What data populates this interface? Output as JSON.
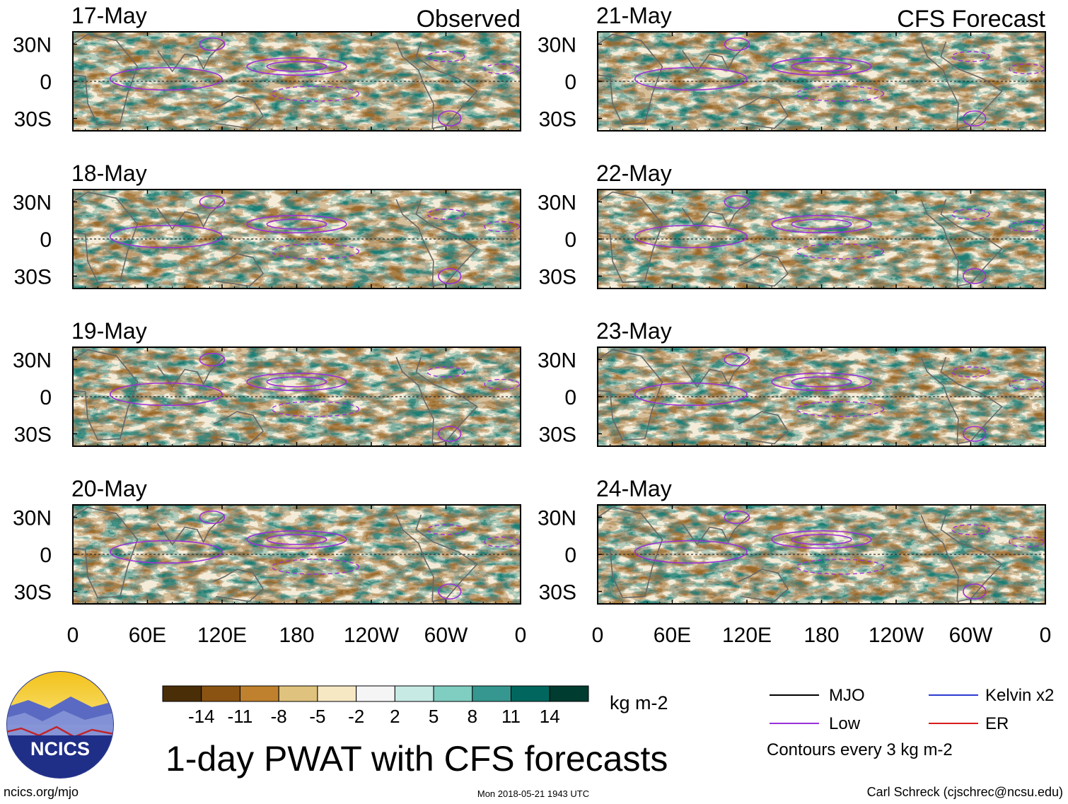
{
  "chart_data": {
    "type": "heatmap",
    "title": "1-day PWAT with CFS forecasts",
    "units": "kg m-2",
    "observed_label": "Observed",
    "forecast_label": "CFS Forecast",
    "panels": [
      {
        "date": "17-May",
        "kind": "observed"
      },
      {
        "date": "18-May",
        "kind": "observed"
      },
      {
        "date": "19-May",
        "kind": "observed"
      },
      {
        "date": "20-May",
        "kind": "observed"
      },
      {
        "date": "21-May",
        "kind": "forecast"
      },
      {
        "date": "22-May",
        "kind": "forecast"
      },
      {
        "date": "23-May",
        "kind": "forecast"
      },
      {
        "date": "24-May",
        "kind": "forecast"
      }
    ],
    "lon_ticks": [
      "0",
      "60E",
      "120E",
      "180",
      "120W",
      "60W",
      "0"
    ],
    "lon_values": [
      0,
      60,
      120,
      180,
      240,
      300,
      360
    ],
    "lat_ticks": [
      "30N",
      "0",
      "30S"
    ],
    "lat_values": [
      30,
      0,
      -30
    ],
    "lat_range": [
      -40,
      40
    ],
    "colorbar": {
      "labels": [
        "-14",
        "-11",
        "-8",
        "-5",
        "-2",
        "2",
        "5",
        "8",
        "11",
        "14"
      ],
      "colors": [
        "#4a2e08",
        "#8a5312",
        "#bf812d",
        "#dfc27d",
        "#f6e8c3",
        "#f5f5f5",
        "#c7eae5",
        "#80cdc1",
        "#35978f",
        "#01665e",
        "#003c30"
      ]
    },
    "legend": [
      {
        "label": "MJO",
        "color": "#000000"
      },
      {
        "label": "Kelvin x2",
        "color": "#2b3bd1"
      },
      {
        "label": "Low",
        "color": "#9b30d9"
      },
      {
        "label": "ER",
        "color": "#d91c1c"
      }
    ],
    "contour_note": "Contours every 3 kg m-2"
  },
  "footer": {
    "url": "ncics.org/mjo",
    "timestamp": "Mon 2018-05-21 1943 UTC",
    "author": "Carl Schreck (cjschrec@ncsu.edu)"
  },
  "logo": {
    "text": "NCICS"
  }
}
